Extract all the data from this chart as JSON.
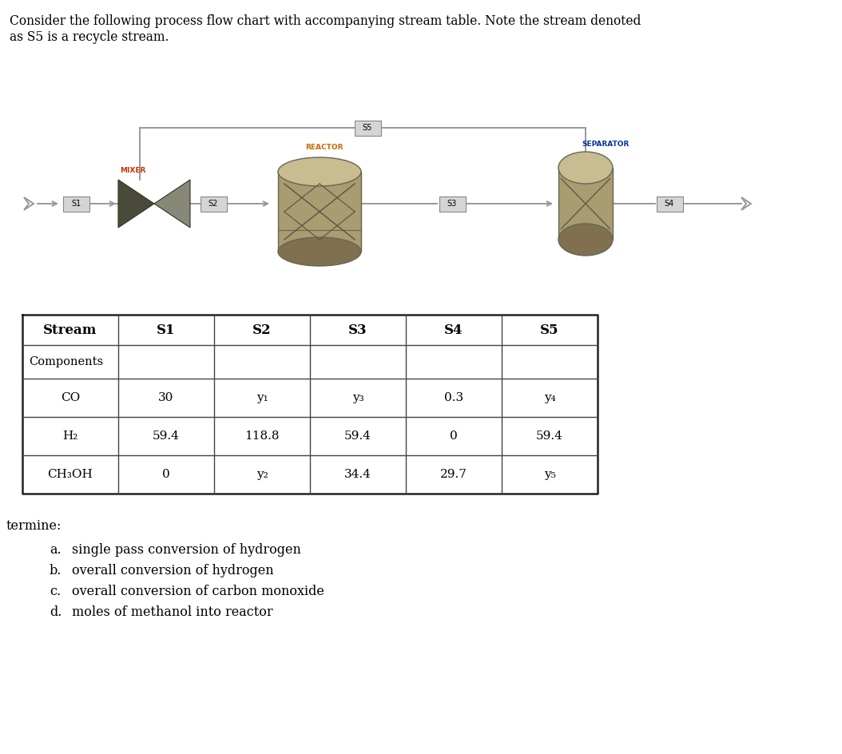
{
  "title_line1": "Consider the following process flow chart with accompanying stream table. Note the stream denoted",
  "title_line2": "as S5 is a recycle stream.",
  "header_row": [
    "Stream",
    "S1",
    "S2",
    "S3",
    "S4",
    "S5"
  ],
  "row_components": "Components",
  "table_rows": [
    [
      "CO",
      "30",
      "y₁",
      "y₃",
      "0.3",
      "y₄"
    ],
    [
      "H₂",
      "59.4",
      "118.8",
      "59.4",
      "0",
      "59.4"
    ],
    [
      "CH₃OH",
      "0",
      "y₂",
      "34.4",
      "29.7",
      "y₅"
    ]
  ],
  "determine_label": "termine:",
  "questions": [
    [
      "a.",
      "single pass conversion of hydrogen"
    ],
    [
      "b.",
      "overall conversion of hydrogen"
    ],
    [
      "c.",
      "overall conversion of carbon monoxide"
    ],
    [
      "d.",
      "moles of methanol into reactor"
    ]
  ],
  "bg_color": "#ffffff",
  "line_color": "#999999",
  "label_mixer": "MIXER",
  "label_reactor": "REACTOR",
  "label_separator": "SEPARATOR",
  "color_mixer_label": "#cc3300",
  "color_reactor_label": "#cc6600",
  "color_separator_label": "#003399",
  "unit_color_light": "#c8bc90",
  "unit_color_mid": "#a89c70",
  "unit_color_dark": "#807050",
  "unit_edge": "#666655",
  "mixer_dark": "#3a3a3a",
  "mixer_light": "#a0a090"
}
